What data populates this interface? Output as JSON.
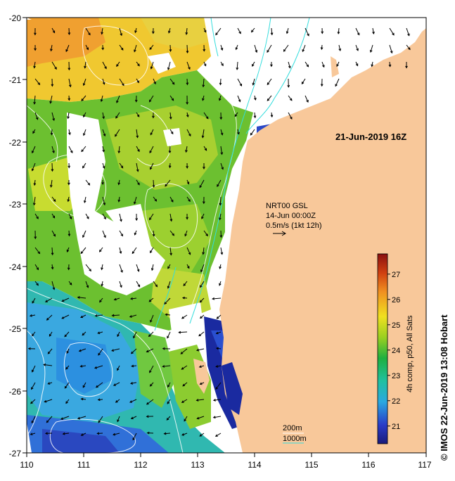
{
  "map": {
    "timestamp": "21-Jun-2019 16Z",
    "current_legend": {
      "model": "NRT00 GSL",
      "date": "14-Jun 00:00Z",
      "scale_label": "0.5m/s (1kt 12h)"
    },
    "depth_legend": {
      "label_200": "200m",
      "label_1000": "1000m"
    },
    "colorbar": {
      "title": "4h comp, p50, All Sats",
      "ticks": [
        "21",
        "22",
        "23",
        "24",
        "25",
        "26",
        "27"
      ],
      "range": [
        20.3,
        27.8
      ]
    },
    "x_axis": {
      "ticks": [
        "110",
        "111",
        "112",
        "113",
        "114",
        "115",
        "116",
        "117"
      ]
    },
    "y_axis": {
      "ticks": [
        "-20",
        "-21",
        "-22",
        "-23",
        "-24",
        "-25",
        "-26",
        "-27"
      ]
    },
    "copyright": "© IMOS 22-Jun-2019 13:08 Hobart",
    "colors": {
      "land": "#f8c89a",
      "contour_200": "#33dddd",
      "contour_1000": "#ffffff"
    }
  }
}
